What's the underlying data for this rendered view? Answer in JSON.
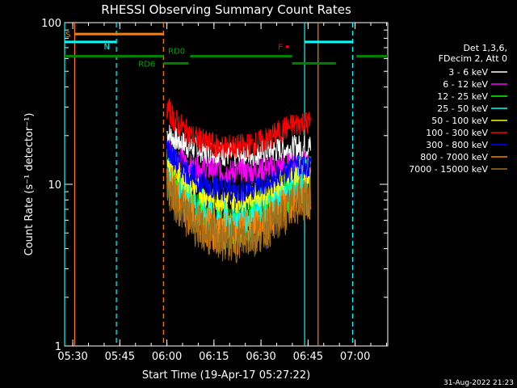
{
  "chart_data": {
    "type": "line",
    "title": "RHESSI Observing Summary Count Rates",
    "xlabel": "Start Time (19-Apr-17 05:27:22)",
    "ylabel": "Count Rate (s⁻¹ detector⁻¹)",
    "y_scale": "log",
    "ylim": [
      1,
      100
    ],
    "xlim_minutes": [
      0,
      103
    ],
    "x_ticks": [
      {
        "label": "05:30",
        "t": 2.6
      },
      {
        "label": "05:45",
        "t": 17.6
      },
      {
        "label": "06:00",
        "t": 32.6
      },
      {
        "label": "06:15",
        "t": 47.6
      },
      {
        "label": "06:30",
        "t": 62.6
      },
      {
        "label": "06:45",
        "t": 77.6
      },
      {
        "label": "07:00",
        "t": 92.6
      }
    ],
    "y_ticks": [
      {
        "label": "1",
        "v": 1
      },
      {
        "label": "10",
        "v": 10
      },
      {
        "label": "100",
        "v": 100
      }
    ],
    "legend_header": [
      "Det 1,3,6,",
      "FDecim 2, Att 0"
    ],
    "legend_placement": "right",
    "series": [
      {
        "name": "3 - 6 keV",
        "color": "#ffffff",
        "x": [
          32.6,
          35,
          40,
          45,
          50,
          55,
          60,
          65,
          70,
          75,
          78.5
        ],
        "y": [
          21,
          19,
          17,
          16,
          15.5,
          15,
          15.5,
          16,
          16.5,
          17,
          17
        ]
      },
      {
        "name": "6 - 12 keV",
        "color": "#ff00ff",
        "x": [
          32.6,
          35,
          40,
          45,
          50,
          55,
          60,
          65,
          70,
          75,
          78.5
        ],
        "y": [
          17,
          15,
          13,
          12.5,
          12,
          12,
          12,
          12.5,
          13,
          13.5,
          13
        ]
      },
      {
        "name": "12 - 25 keV",
        "color": "#00ff00",
        "x": [
          32.6,
          35,
          40,
          45,
          50,
          55,
          60,
          65,
          70,
          75,
          78.5
        ],
        "y": [
          12,
          9.5,
          7.5,
          6,
          5.5,
          5.5,
          6,
          7,
          8.5,
          10,
          10
        ]
      },
      {
        "name": "25 - 50 keV",
        "color": "#00ffff",
        "x": [
          32.6,
          35,
          40,
          45,
          50,
          55,
          60,
          65,
          70,
          75,
          78.5
        ],
        "y": [
          13,
          10,
          8,
          6.5,
          6,
          6,
          6.5,
          7.5,
          9,
          11,
          11
        ]
      },
      {
        "name": "50 - 100 keV",
        "color": "#ffff00",
        "x": [
          32.6,
          35,
          40,
          45,
          50,
          55,
          60,
          65,
          70,
          75,
          78.5
        ],
        "y": [
          15,
          12,
          10,
          8.5,
          8,
          8,
          8.5,
          9,
          10.5,
          12,
          12
        ]
      },
      {
        "name": "100 - 300 keV",
        "color": "#ff0000",
        "x": [
          32.6,
          35,
          40,
          45,
          50,
          55,
          60,
          65,
          70,
          75,
          78.5
        ],
        "y": [
          30,
          25,
          20,
          18,
          17,
          17,
          17.5,
          19,
          22,
          24,
          24
        ]
      },
      {
        "name": "300 - 800 keV",
        "color": "#0000ff",
        "x": [
          32.6,
          35,
          40,
          45,
          50,
          55,
          60,
          65,
          70,
          75,
          78.5
        ],
        "y": [
          17,
          14,
          11.5,
          10,
          9.5,
          9,
          9.5,
          10,
          11.5,
          13,
          13
        ]
      },
      {
        "name": "800 - 7000 keV",
        "color": "#ff8000",
        "x": [
          32.6,
          35,
          40,
          45,
          50,
          55,
          60,
          65,
          70,
          75,
          78.5
        ],
        "y": [
          11,
          8.5,
          6.5,
          5.5,
          5,
          5,
          5.2,
          6,
          7,
          8.5,
          8.5
        ]
      },
      {
        "name": "7000 - 15000 keV",
        "color": "#a0701c",
        "x": [
          32.6,
          35,
          40,
          45,
          50,
          55,
          60,
          65,
          70,
          75,
          78.5
        ],
        "y": [
          10,
          8,
          6,
          5,
          4.5,
          4.5,
          4.8,
          5.5,
          6.5,
          8,
          8
        ]
      }
    ],
    "annotations": {
      "S": "S",
      "N": "N",
      "F": "F",
      "RD0": "RD0",
      "RD6": "RD6",
      "footer_date": "31-Aug-2022 21:23"
    },
    "vertical_lines": [
      {
        "t": 3.2,
        "color": "#ff8000",
        "dashed": false
      },
      {
        "t": 80.8,
        "color": "#ff8000",
        "dashed": false
      },
      {
        "t": 31.5,
        "color": "#ff8000",
        "dashed": true
      },
      {
        "t": 16.5,
        "color": "#00ffff",
        "dashed": true
      },
      {
        "t": 91.8,
        "color": "#00ffff",
        "dashed": true
      },
      {
        "t": 76.5,
        "color": "#00ffff",
        "dashed": false
      },
      {
        "t": 0,
        "color": "#00ffff",
        "dashed": false
      }
    ],
    "segments": [
      {
        "color": "#ff8000",
        "t0": 3.2,
        "t1": 31.5,
        "v": 85
      },
      {
        "color": "#00ffff",
        "t0": 0,
        "t1": 16.5,
        "v": 76
      },
      {
        "color": "#00ffff",
        "t0": 76.5,
        "t1": 91.8,
        "v": 76
      },
      {
        "color": "#008000",
        "t0": 0,
        "t1": 31.5,
        "v": 62
      },
      {
        "color": "#008000",
        "t0": 31.5,
        "t1": 39.5,
        "v": 56
      },
      {
        "color": "#008000",
        "t0": 40,
        "t1": 72.5,
        "v": 62
      },
      {
        "color": "#008000",
        "t0": 72.5,
        "t1": 86.5,
        "v": 56
      },
      {
        "color": "#008000",
        "t0": 93,
        "t1": 103,
        "v": 62
      },
      {
        "color": "#ff0000",
        "t0": 70.5,
        "t1": 71.5,
        "v": 71
      }
    ]
  }
}
